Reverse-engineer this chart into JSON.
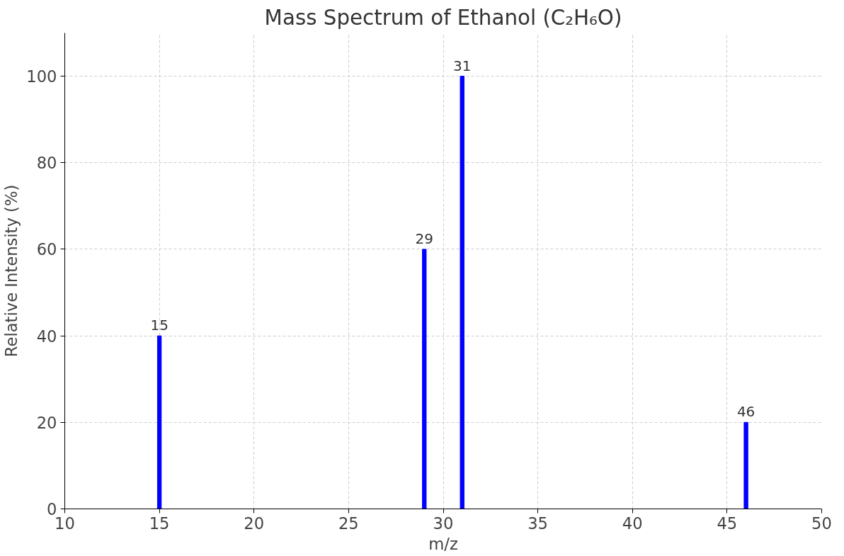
{
  "chart_data": {
    "type": "bar",
    "title": "Mass Spectrum of Ethanol (C₂H₆O)",
    "xlabel": "m/z",
    "ylabel": "Relative Intensity (%)",
    "x": [
      15,
      29,
      31,
      46
    ],
    "series": [
      {
        "color": "#0000ff",
        "values": [
          40,
          60,
          100,
          20
        ]
      }
    ],
    "annotations": [
      {
        "text": "15",
        "x": 15,
        "y": 40
      },
      {
        "text": "29",
        "x": 29,
        "y": 60
      },
      {
        "text": "31",
        "x": 31,
        "y": 100
      },
      {
        "text": "46",
        "x": 46,
        "y": 20
      }
    ],
    "xlim": [
      10,
      50
    ],
    "xticks": [
      10,
      15,
      20,
      25,
      30,
      35,
      40,
      45,
      50
    ],
    "ylim": [
      0,
      110
    ],
    "yticks": [
      0,
      20,
      40,
      60,
      80,
      100
    ],
    "grid": true,
    "line_style": "dashed"
  }
}
